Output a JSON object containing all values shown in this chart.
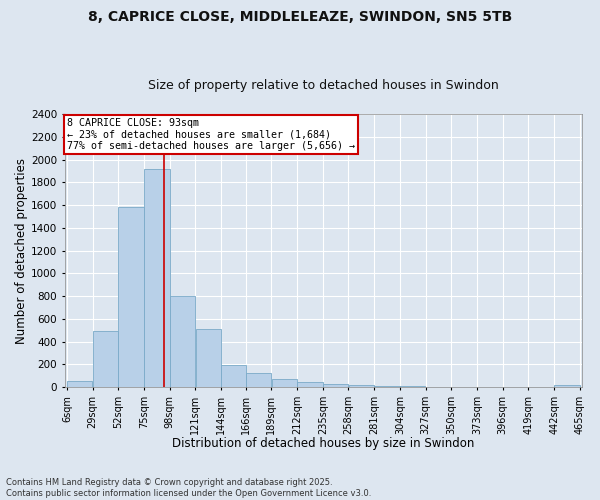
{
  "title1": "8, CAPRICE CLOSE, MIDDLELEAZE, SWINDON, SN5 5TB",
  "title2": "Size of property relative to detached houses in Swindon",
  "xlabel": "Distribution of detached houses by size in Swindon",
  "ylabel": "Number of detached properties",
  "annotation_line1": "8 CAPRICE CLOSE: 93sqm",
  "annotation_line2": "← 23% of detached houses are smaller (1,684)",
  "annotation_line3": "77% of semi-detached houses are larger (5,656) →",
  "property_size_sqm": 93,
  "bin_edges": [
    6,
    29,
    52,
    75,
    98,
    121,
    144,
    166,
    189,
    212,
    235,
    258,
    281,
    304,
    327,
    350,
    373,
    396,
    419,
    442,
    465
  ],
  "bin_labels": [
    "6sqm",
    "29sqm",
    "52sqm",
    "75sqm",
    "98sqm",
    "121sqm",
    "144sqm",
    "166sqm",
    "189sqm",
    "212sqm",
    "235sqm",
    "258sqm",
    "281sqm",
    "304sqm",
    "327sqm",
    "350sqm",
    "373sqm",
    "396sqm",
    "419sqm",
    "442sqm",
    "465sqm"
  ],
  "counts": [
    55,
    490,
    1580,
    1920,
    800,
    510,
    195,
    125,
    75,
    50,
    28,
    18,
    12,
    8,
    6,
    4,
    3,
    2,
    1,
    18
  ],
  "bar_color": "#b8d0e8",
  "bar_edge_color": "#7aaac8",
  "vline_color": "#cc0000",
  "vline_x": 93,
  "ylim": [
    0,
    2400
  ],
  "yticks": [
    0,
    200,
    400,
    600,
    800,
    1000,
    1200,
    1400,
    1600,
    1800,
    2000,
    2200,
    2400
  ],
  "background_color": "#dde6f0",
  "grid_color": "#ffffff",
  "fig_facecolor": "#dde6f0",
  "footer1": "Contains HM Land Registry data © Crown copyright and database right 2025.",
  "footer2": "Contains public sector information licensed under the Open Government Licence v3.0.",
  "title_fontsize": 10,
  "subtitle_fontsize": 9,
  "annotation_box_edge_color": "#cc0000",
  "figsize": [
    6.0,
    5.0
  ],
  "dpi": 100
}
